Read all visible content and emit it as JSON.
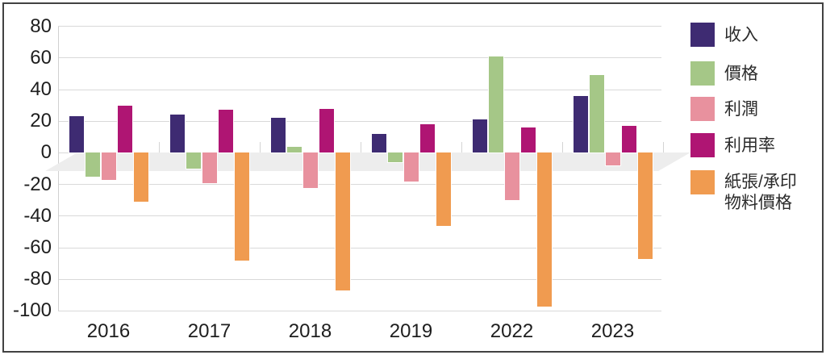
{
  "chart_data": {
    "type": "bar",
    "title": "",
    "categories": [
      "2016",
      "2017",
      "2018",
      "2019",
      "2022",
      "2023"
    ],
    "series": [
      {
        "name": "收入",
        "color": "#3e2b72",
        "values": [
          23,
          24,
          22,
          12,
          21,
          36
        ],
        "legend_lines": [
          "收入"
        ]
      },
      {
        "name": "價格",
        "color": "#a5c787",
        "values": [
          -15,
          -10,
          4,
          -6,
          61,
          49
        ],
        "legend_lines": [
          "價格"
        ]
      },
      {
        "name": "利潤",
        "color": "#e8919e",
        "values": [
          -17,
          -19,
          -22,
          -18,
          -30,
          -8
        ],
        "legend_lines": [
          "利潤"
        ]
      },
      {
        "name": "利用率",
        "color": "#af1573",
        "values": [
          30,
          27,
          28,
          18,
          16,
          17
        ],
        "legend_lines": [
          "利用率"
        ]
      },
      {
        "name": "紙張/承印物料價格",
        "color": "#f09b50",
        "values": [
          -31,
          -68,
          -87,
          -46,
          -97,
          -67
        ],
        "legend_lines": [
          "紙張/承印",
          "物料價格"
        ]
      }
    ],
    "y_ticks": [
      80,
      60,
      40,
      20,
      0,
      -20,
      -40,
      -60,
      -80,
      -100
    ],
    "ylim": [
      -100,
      80
    ],
    "xlabel": "",
    "ylabel": "",
    "grid": true,
    "legend_position": "right"
  },
  "colors": {
    "gridline": "#d9d9d9",
    "axis_line": "#d0d0d0",
    "floor_band": "#ededed",
    "frame_border": "#424242",
    "text": "#1e1e1e"
  }
}
